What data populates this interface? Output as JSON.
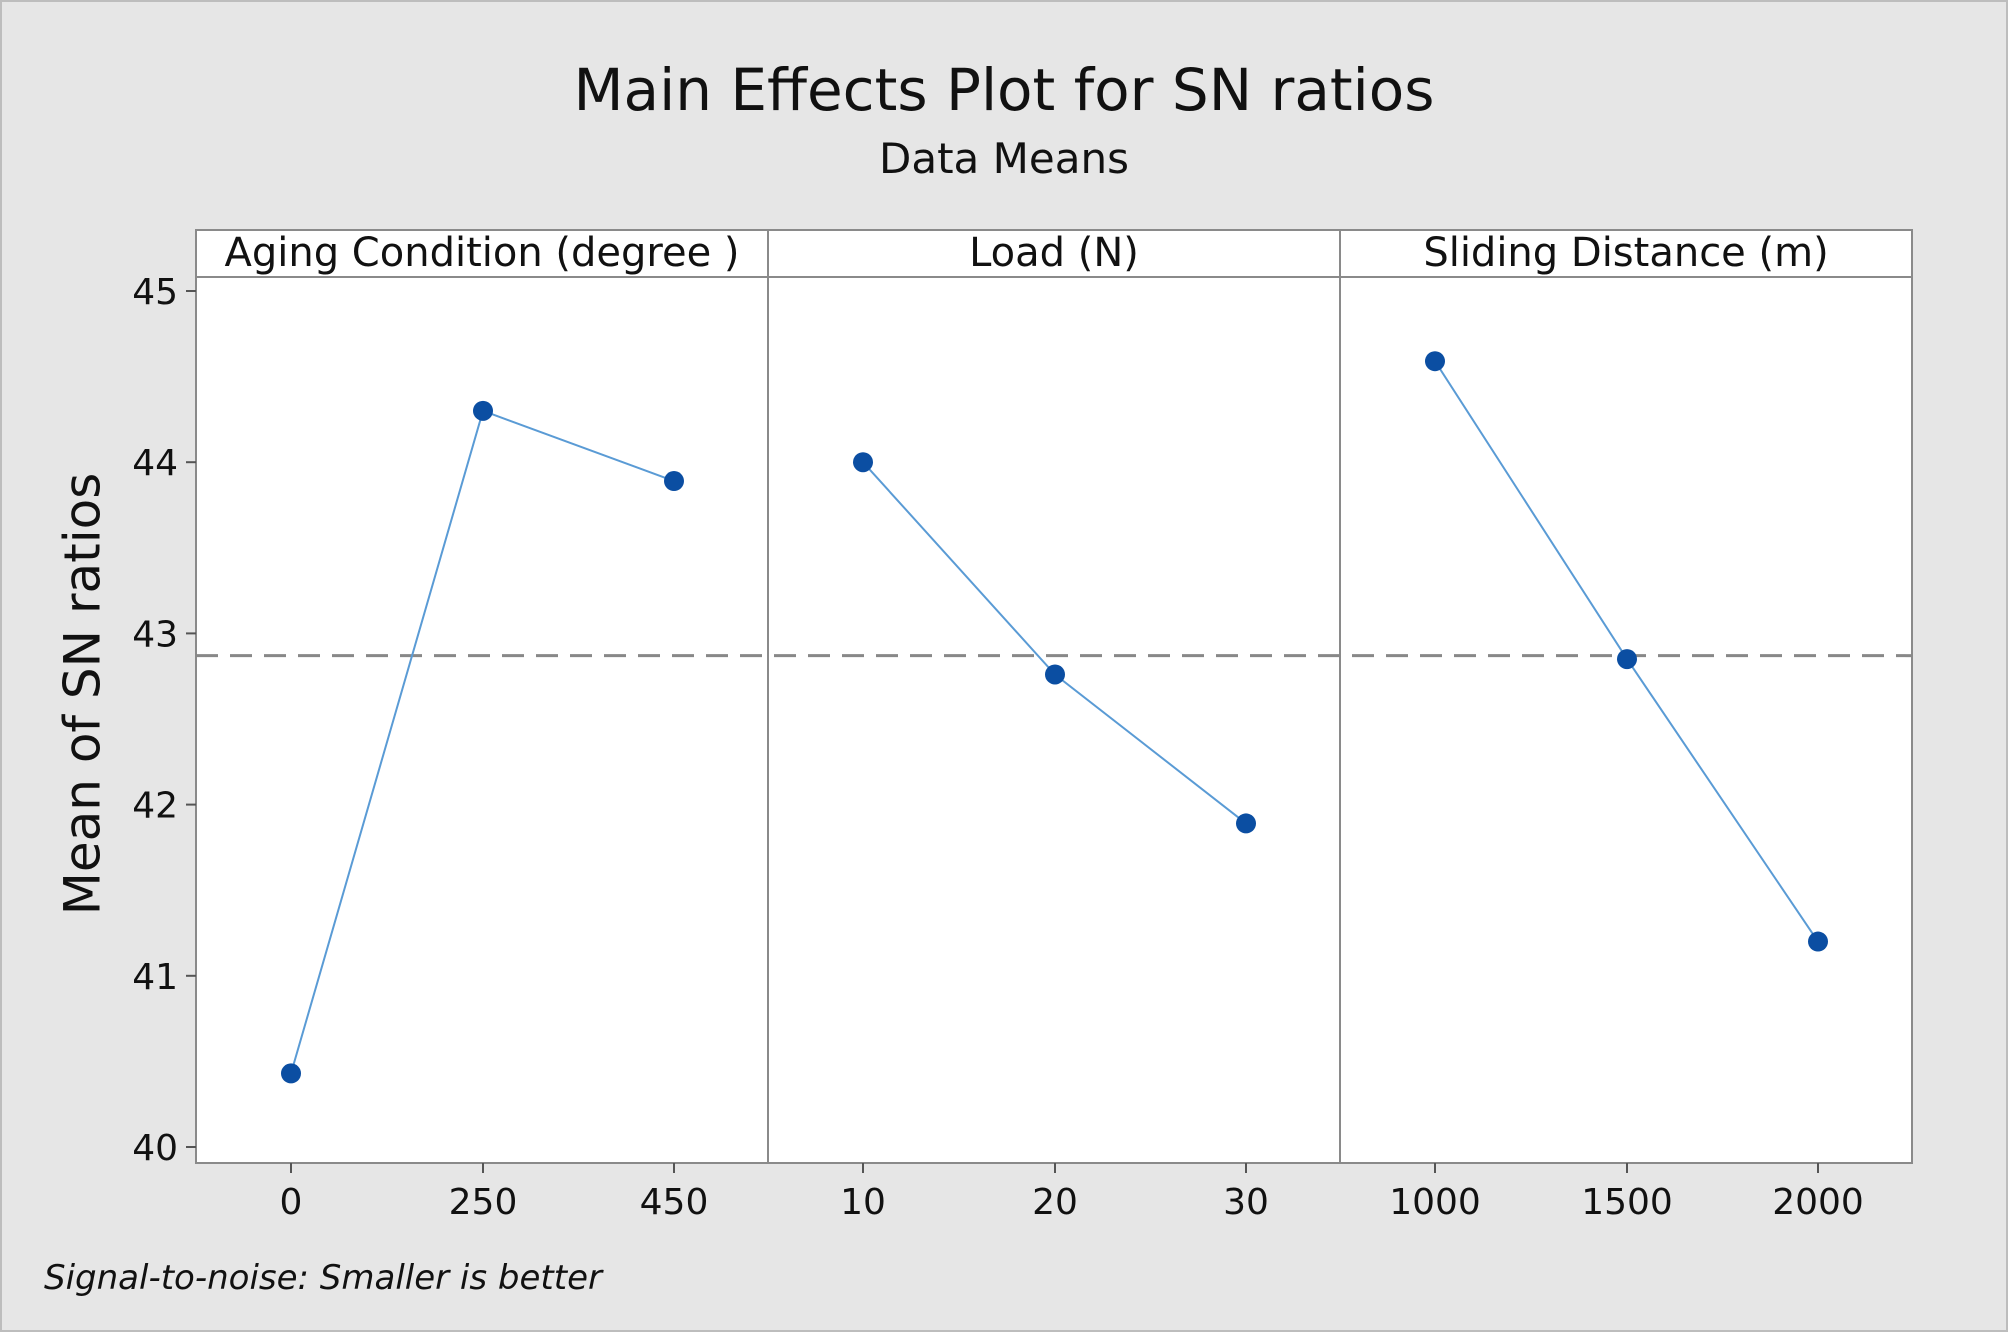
{
  "title": "Main Effects Plot for SN ratios",
  "subtitle": "Data Means",
  "footnote": "Signal-to-noise: Smaller is better",
  "chart_data": {
    "type": "line",
    "ylabel": "Mean of SN ratios",
    "ylim": [
      40,
      45
    ],
    "yticks": [
      "40",
      "41",
      "42",
      "43",
      "44",
      "45"
    ],
    "grand_mean": 42.87,
    "line_color": "#5a9bd5",
    "marker_color": "#0b4ea2",
    "reference_line_color": "#888888",
    "panels": [
      {
        "title": "Aging Condition (degree )",
        "categories": [
          "0",
          "250",
          "450"
        ],
        "values": [
          40.43,
          44.3,
          43.89
        ]
      },
      {
        "title": "Load (N)",
        "categories": [
          "10",
          "20",
          "30"
        ],
        "values": [
          44.0,
          42.76,
          41.89
        ]
      },
      {
        "title": "Sliding Distance (m)",
        "categories": [
          "1000",
          "1500",
          "2000"
        ],
        "values": [
          44.59,
          42.85,
          41.2
        ]
      }
    ]
  }
}
